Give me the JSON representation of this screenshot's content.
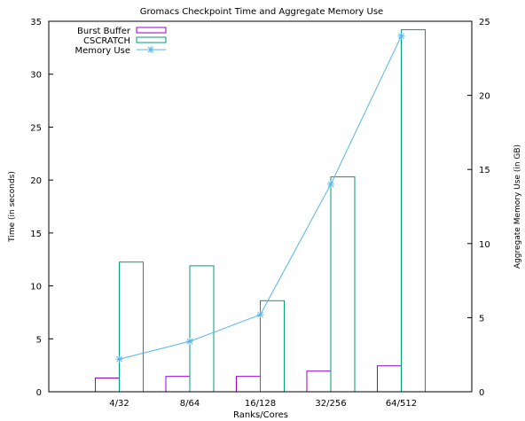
{
  "chart_data": {
    "type": "bar",
    "title": "Gromacs Checkpoint Time and Aggregate Memory Use",
    "xlabel": "Ranks/Cores",
    "ylabel": "Time (in seconds)",
    "y2label": "Aggregate Memory Use (in GB)",
    "categories": [
      "4/32",
      "8/64",
      "16/128",
      "32/256",
      "64/512"
    ],
    "ylim": [
      0,
      35
    ],
    "yticks": [
      0,
      5,
      10,
      15,
      20,
      25,
      30,
      35
    ],
    "y2lim": [
      0,
      25
    ],
    "y2ticks": [
      0,
      5,
      10,
      15,
      20,
      25
    ],
    "legend_position": "top-left",
    "series": [
      {
        "name": "Burst Buffer",
        "kind": "bar",
        "axis": "left",
        "color": "#9400d3",
        "values": [
          1.3,
          1.45,
          1.45,
          1.95,
          2.45
        ]
      },
      {
        "name": "CSCRATCH",
        "kind": "bar",
        "axis": "left",
        "color": "#009e73",
        "values": [
          12.25,
          11.9,
          8.6,
          20.3,
          34.2
        ]
      },
      {
        "name": "Memory Use",
        "kind": "line",
        "axis": "right",
        "marker": "asterisk",
        "color": "#56b4e9",
        "values": [
          2.2,
          3.4,
          5.2,
          14.0,
          24.0
        ]
      }
    ]
  }
}
